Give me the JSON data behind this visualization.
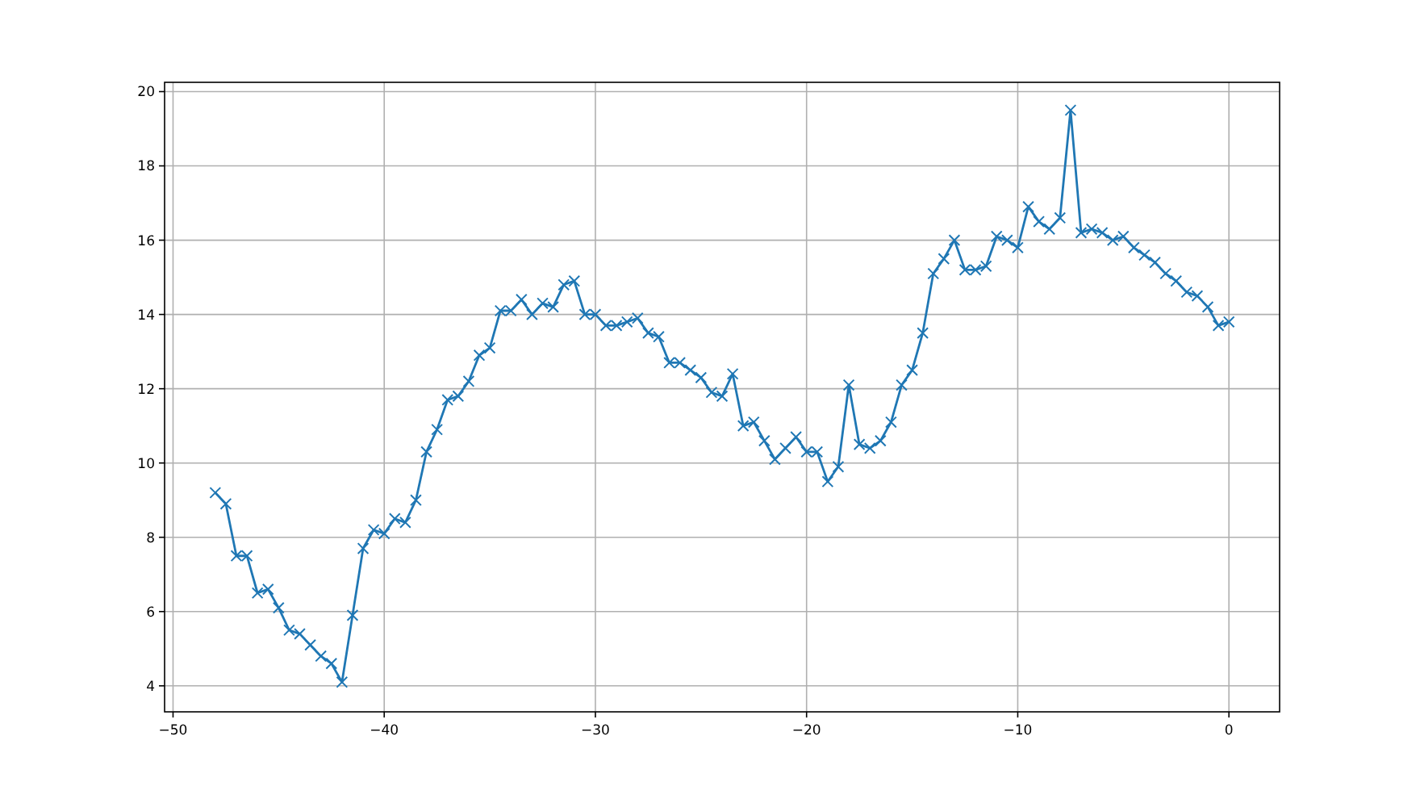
{
  "chart_data": {
    "type": "line",
    "marker": "cross",
    "grid": true,
    "line_style": "solid",
    "xlim": [
      -50.4,
      2.4
    ],
    "ylim": [
      3.3,
      20.25
    ],
    "xticks": [
      -50,
      -40,
      -30,
      -20,
      -10,
      0
    ],
    "yticks": [
      4,
      6,
      8,
      10,
      12,
      14,
      16,
      18,
      20
    ],
    "x": [
      -48,
      -47.5,
      -47,
      -46.5,
      -46,
      -45.5,
      -45,
      -44.5,
      -44,
      -43.5,
      -43,
      -42.5,
      -42,
      -41.5,
      -41,
      -40.5,
      -40,
      -39.5,
      -39,
      -38.5,
      -38,
      -37.5,
      -37,
      -36.5,
      -36,
      -35.5,
      -35,
      -34.5,
      -34,
      -33.5,
      -33,
      -32.5,
      -32,
      -31.5,
      -31,
      -30.5,
      -30,
      -29.5,
      -29,
      -28.5,
      -28,
      -27.5,
      -27,
      -26.5,
      -26,
      -25.5,
      -25,
      -24.5,
      -24,
      -23.5,
      -23,
      -22.5,
      -22,
      -21.5,
      -21,
      -20.5,
      -20,
      -19.5,
      -19,
      -18.5,
      -18,
      -17.5,
      -17,
      -16.5,
      -16,
      -15.5,
      -15,
      -14.5,
      -14,
      -13.5,
      -13,
      -12.5,
      -12,
      -11.5,
      -11,
      -10.5,
      -10,
      -9.5,
      -9,
      -8.5,
      -8,
      -7.5,
      -7,
      -6.5,
      -6,
      -5.5,
      -5,
      -4.5,
      -4,
      -3.5,
      -3,
      -2.5,
      -2,
      -1.5,
      -1,
      -0.5,
      0
    ],
    "series": [
      {
        "color": "#1f77b4",
        "values": [
          9.2,
          8.9,
          7.5,
          7.5,
          6.5,
          6.6,
          6.1,
          5.5,
          5.4,
          5.1,
          4.8,
          4.6,
          4.1,
          5.9,
          7.7,
          8.2,
          8.1,
          8.5,
          8.4,
          9.0,
          10.3,
          10.9,
          11.7,
          11.8,
          12.2,
          12.9,
          13.1,
          14.1,
          14.1,
          14.4,
          14.0,
          14.3,
          14.2,
          14.8,
          14.9,
          14.0,
          14.0,
          13.7,
          13.7,
          13.8,
          13.9,
          13.5,
          13.4,
          12.7,
          12.7,
          12.5,
          12.3,
          11.9,
          11.8,
          12.4,
          11.0,
          11.1,
          10.6,
          10.1,
          10.4,
          10.7,
          10.3,
          10.3,
          9.5,
          9.9,
          12.1,
          10.5,
          10.4,
          10.6,
          11.1,
          12.1,
          12.5,
          13.5,
          15.1,
          15.5,
          16.0,
          15.2,
          15.2,
          15.3,
          16.1,
          16.0,
          15.8,
          16.9,
          16.5,
          16.3,
          16.6,
          19.5,
          16.2,
          16.3,
          16.2,
          16.0,
          16.1,
          15.8,
          15.6,
          15.4,
          15.1,
          14.9,
          14.6,
          14.5,
          14.2,
          13.7,
          13.8
        ]
      }
    ]
  }
}
